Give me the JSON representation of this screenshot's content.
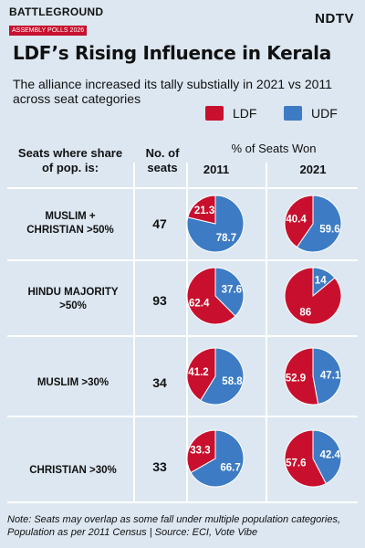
{
  "brand": {
    "name": "BATTLEGROUND",
    "sub": "ASSEMBLY POLLS 2026"
  },
  "logo": "NDTV",
  "title": "LDF’s Rising Influence in Kerala",
  "subtitle": "The alliance increased its tally substially in 2021 vs 2011 across seat categories",
  "colors": {
    "ldf": "#c8102e",
    "udf": "#3d7cc4"
  },
  "header": {
    "seats_where": "Seats where share of pop. is:",
    "no_of_seats": "No. of seats",
    "pct_won": "% of Seats Won",
    "year1": "2011",
    "year2": "2021"
  },
  "note": "Note: Seats may overlap as some fall under multiple population categories, Population as per 2011 Census | Source: ECI, Vote Vibe",
  "chart_data": {
    "type": "pie",
    "title": "LDF’s Rising Influence in Kerala",
    "legend": [
      "LDF",
      "UDF"
    ],
    "years": [
      "2011",
      "2021"
    ],
    "rows": [
      {
        "category": "MUSLIM + CHRISTIAN >50%",
        "seats": "47",
        "y2011": {
          "LDF": 21.3,
          "UDF": 78.7
        },
        "y2021": {
          "LDF": 40.4,
          "UDF": 59.6
        }
      },
      {
        "category": "HINDU MAJORITY >50%",
        "seats": "93",
        "y2011": {
          "LDF": 62.4,
          "UDF": 37.6
        },
        "y2021": {
          "LDF": 86,
          "UDF": 14
        }
      },
      {
        "category": "MUSLIM >30%",
        "seats": "34",
        "y2011": {
          "LDF": 41.2,
          "UDF": 58.8
        },
        "y2021": {
          "LDF": 52.9,
          "UDF": 47.1
        }
      },
      {
        "category": "CHRISTIAN >30%",
        "seats": "33",
        "y2011": {
          "LDF": 33.3,
          "UDF": 66.7
        },
        "y2021": {
          "LDF": 57.6,
          "UDF": 42.4
        }
      }
    ]
  }
}
